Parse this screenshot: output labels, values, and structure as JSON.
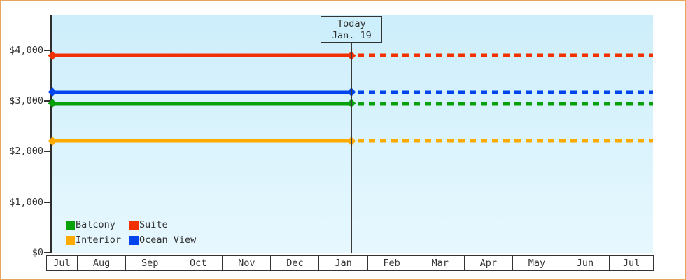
{
  "page": {
    "background_color": "#ffffff",
    "frame_border_color": "#eaa55c",
    "axis_color": "#2e2e2e",
    "text_color": "#333333"
  },
  "chart_data": {
    "type": "line",
    "title": "",
    "xlabel": "",
    "ylabel": "",
    "x_categories": [
      "Jul",
      "Aug",
      "Sep",
      "Oct",
      "Nov",
      "Dec",
      "Jan",
      "Feb",
      "Mar",
      "Apr",
      "May",
      "Jun",
      "Jul"
    ],
    "y_ticks": [
      {
        "label": "$0",
        "value": 0
      },
      {
        "label": "$1,000",
        "value": 1000
      },
      {
        "label": "$2,000",
        "value": 2000
      },
      {
        "label": "$3,000",
        "value": 3000
      },
      {
        "label": "$4,000",
        "value": 4000
      }
    ],
    "ylim": [
      0,
      4690
    ],
    "grid": false,
    "legend_position": "inside-bottom-left",
    "plot_background": {
      "top": "#cdeefb",
      "bottom": "#e7f8fe"
    },
    "today": {
      "label_line1": "Today",
      "label_line2": "Jan. 19",
      "x_fraction": 0.498,
      "line_style_before": "solid",
      "line_style_after": "dashed"
    },
    "series": [
      {
        "name": "Suite",
        "value": 3900,
        "color": "#f23000"
      },
      {
        "name": "Ocean View",
        "value": 3170,
        "color": "#0044ee"
      },
      {
        "name": "Balcony",
        "value": 2950,
        "color": "#09a109"
      },
      {
        "name": "Interior",
        "value": 2210,
        "color": "#ffaa00"
      }
    ]
  },
  "legend": {
    "rows": [
      [
        {
          "label": "Balcony",
          "color": "#09a109"
        },
        {
          "label": "Suite",
          "color": "#f23000"
        }
      ],
      [
        {
          "label": "Interior",
          "color": "#ffaa00"
        },
        {
          "label": "Ocean View",
          "color": "#0044ee"
        }
      ]
    ]
  }
}
